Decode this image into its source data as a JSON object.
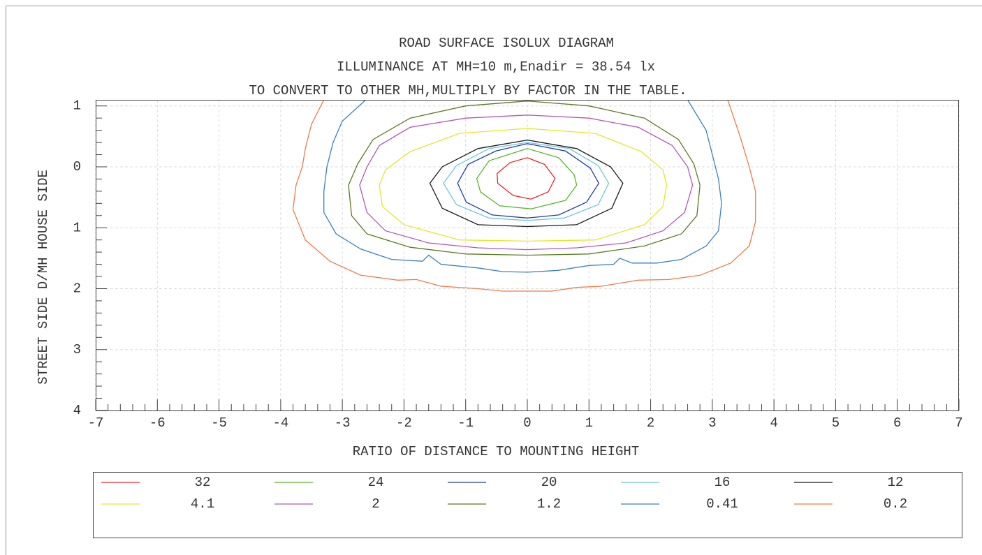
{
  "chart_data": {
    "type": "contour",
    "title": "ROAD SURFACE ISOLUX DIAGRAM",
    "subtitle": [
      "ILLUMINANCE AT MH=10 m,Enadir = 38.54  lx",
      "TO CONVERT TO OTHER MH,MULTIPLY BY FACTOR IN THE TABLE."
    ],
    "x_label": "RATIO OF DISTANCE TO MOUNTING HEIGHT",
    "y_label": "STREET SIDE  D/MH  HOUSE SIDE",
    "xlim": [
      -7,
      7
    ],
    "xticks": [
      -7,
      -6,
      -5,
      -4,
      -3,
      -2,
      -1,
      0,
      1,
      2,
      3,
      4,
      5,
      6,
      7
    ],
    "ylim": [
      -1.1,
      4
    ],
    "y_inverted": true,
    "yticks": [
      {
        "value": -1,
        "label": "1"
      },
      0,
      1,
      2,
      3,
      4
    ],
    "minor_ticks_per_major": 5,
    "grid": true,
    "series": [
      {
        "name": "32",
        "color": "#e8262a",
        "x": [
          0,
          0.28,
          0.45,
          0.34,
          0.06,
          -0.23,
          -0.48,
          -0.49,
          -0.28,
          0
        ],
        "y": [
          -0.15,
          -0.04,
          0.19,
          0.41,
          0.53,
          0.47,
          0.27,
          0.11,
          -0.07,
          -0.15
        ]
      },
      {
        "name": "24",
        "color": "#5bb52f",
        "x": [
          0,
          0.51,
          0.76,
          0.8,
          0.62,
          0.06,
          -0.45,
          -0.76,
          -0.82,
          -0.62,
          0
        ],
        "y": [
          -0.3,
          -0.15,
          0.13,
          0.3,
          0.55,
          0.69,
          0.64,
          0.41,
          0.19,
          -0.1,
          -0.3
        ]
      },
      {
        "name": "20",
        "color": "#1f3fa8",
        "x": [
          0,
          0.62,
          1.02,
          1.16,
          0.96,
          0.51,
          0,
          -0.57,
          -0.99,
          -1.13,
          -0.96,
          -0.51,
          0
        ],
        "y": [
          -0.38,
          -0.26,
          0.02,
          0.27,
          0.58,
          0.79,
          0.84,
          0.79,
          0.58,
          0.27,
          -0.04,
          -0.26,
          -0.38
        ]
      },
      {
        "name": "16",
        "color": "#6fc6dd",
        "x": [
          0,
          0.68,
          1.15,
          1.32,
          1.15,
          0.6,
          0,
          -0.62,
          -1.15,
          -1.36,
          -1.15,
          -0.62,
          0
        ],
        "y": [
          -0.4,
          -0.3,
          -0.02,
          0.27,
          0.62,
          0.84,
          0.88,
          0.84,
          0.62,
          0.27,
          -0.02,
          -0.3,
          -0.4
        ]
      },
      {
        "name": "12",
        "color": "#1a1a1a",
        "x": [
          0,
          0.8,
          1.35,
          1.55,
          1.37,
          0.8,
          0,
          -0.8,
          -1.38,
          -1.58,
          -1.38,
          -0.8,
          0
        ],
        "y": [
          -0.44,
          -0.3,
          0,
          0.27,
          0.68,
          0.95,
          0.98,
          0.95,
          0.68,
          0.27,
          0,
          -0.3,
          -0.44
        ]
      },
      {
        "name": "4.1",
        "color": "#e6e62a",
        "x": [
          0,
          1.1,
          1.85,
          2.2,
          2.26,
          2.2,
          1.9,
          1.1,
          0,
          -1.1,
          -2,
          -2.35,
          -2.4,
          -2.3,
          -1.9,
          -1.1,
          0
        ],
        "y": [
          -0.63,
          -0.55,
          -0.25,
          0.05,
          0.3,
          0.65,
          0.95,
          1.2,
          1.22,
          1.2,
          0.95,
          0.65,
          0.3,
          0.05,
          -0.25,
          -0.55,
          -0.63
        ]
      },
      {
        "name": "2",
        "color": "#b05ab8",
        "x": [
          0,
          1,
          1.8,
          2.35,
          2.6,
          2.68,
          2.55,
          2.2,
          1.6,
          0.8,
          0,
          -0.8,
          -1.6,
          -2.3,
          -2.6,
          -2.72,
          -2.6,
          -2.4,
          -1.9,
          -1,
          0
        ],
        "y": [
          -0.85,
          -0.8,
          -0.65,
          -0.35,
          0,
          0.3,
          0.75,
          1.05,
          1.25,
          1.33,
          1.36,
          1.33,
          1.25,
          1.05,
          0.75,
          0.3,
          0,
          -0.35,
          -0.65,
          -0.8,
          -0.85
        ]
      },
      {
        "name": "1.2",
        "color": "#5a7a20",
        "x": [
          0,
          1,
          1.9,
          2.45,
          2.7,
          2.8,
          2.75,
          2.5,
          1.9,
          1,
          0,
          -1,
          -1.9,
          -2.6,
          -2.85,
          -2.9,
          -2.75,
          -2.5,
          -1.9,
          -1,
          0
        ],
        "y": [
          -1.08,
          -1,
          -0.8,
          -0.45,
          -0.05,
          0.3,
          0.8,
          1.1,
          1.3,
          1.43,
          1.45,
          1.43,
          1.32,
          1.1,
          0.8,
          0.3,
          -0.05,
          -0.45,
          -0.8,
          -1,
          -1.08
        ]
      },
      {
        "name": "0.41",
        "color": "#3a7fc0",
        "x": [
          -2.62,
          -3,
          -3.15,
          -3.25,
          -3.3,
          -3.3,
          -3.1,
          -2.7,
          -2.2,
          -1.7,
          -1.6,
          -1.4,
          -0.8,
          -0.4,
          0,
          0.5,
          1,
          1.4,
          1.5,
          1.7,
          2.1,
          2.5,
          2.9,
          3.1,
          3.15,
          3.1,
          3,
          2.9,
          2.6
        ],
        "y": [
          -1.1,
          -0.75,
          -0.4,
          0,
          0.4,
          0.75,
          1.1,
          1.35,
          1.52,
          1.55,
          1.45,
          1.6,
          1.66,
          1.72,
          1.73,
          1.7,
          1.62,
          1.6,
          1.5,
          1.58,
          1.58,
          1.52,
          1.3,
          1.05,
          0.6,
          0.2,
          -0.2,
          -0.6,
          -1.1
        ]
      },
      {
        "name": "0.2",
        "color": "#f07a4a",
        "x": [
          -3.3,
          -3.5,
          -3.6,
          -3.65,
          -3.75,
          -3.8,
          -3.6,
          -3.2,
          -2.7,
          -2.1,
          -1.8,
          -1.4,
          -0.8,
          -0.4,
          0,
          0.4,
          0.8,
          1.2,
          1.8,
          2.3,
          2.8,
          3.3,
          3.6,
          3.7,
          3.7,
          3.6,
          3.45,
          3.25
        ],
        "y": [
          -1.1,
          -0.7,
          -0.3,
          0,
          0.3,
          0.7,
          1.2,
          1.55,
          1.78,
          1.86,
          1.85,
          1.96,
          2,
          2.04,
          2.04,
          2.04,
          1.98,
          1.96,
          1.86,
          1.85,
          1.78,
          1.58,
          1.3,
          0.9,
          0.4,
          0,
          -0.5,
          -1.1
        ]
      }
    ]
  }
}
